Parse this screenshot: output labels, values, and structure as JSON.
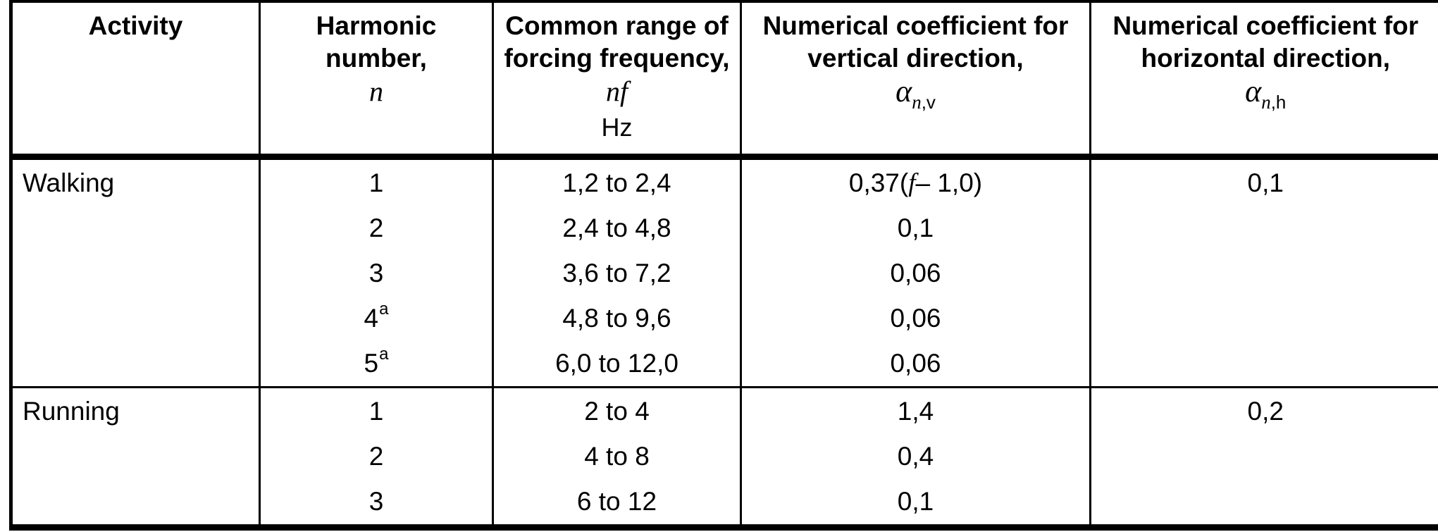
{
  "page": {
    "background_color": "#ffffff",
    "text_color": "#000000",
    "border_color": "#000000"
  },
  "table": {
    "columns": [
      {
        "id": "activity",
        "title_lines": [
          "Activity"
        ]
      },
      {
        "id": "harmonic",
        "title_lines": [
          "Harmonic",
          "number,"
        ],
        "symbol": {
          "italic": "n"
        }
      },
      {
        "id": "frequency",
        "title_lines": [
          "Common range of",
          "forcing frequency,"
        ],
        "symbol": {
          "italic": "nf"
        },
        "unit": "Hz"
      },
      {
        "id": "vertical",
        "title_lines": [
          "Numerical coefficient for",
          "vertical direction,"
        ],
        "symbol": {
          "base": "α",
          "sub_italic": "n",
          "sub_upright": ",v"
        }
      },
      {
        "id": "horizontal",
        "title_lines": [
          "Numerical coefficient for",
          "horizontal direction,"
        ],
        "symbol": {
          "base": "α",
          "sub_italic": "n",
          "sub_upright": ",h"
        }
      }
    ],
    "groups": [
      {
        "activity": "Walking",
        "rows": [
          {
            "harmonic": "1",
            "harmonic_sup": "",
            "frequency": "1,2 to 2,4",
            "vertical_parts": [
              {
                "text": "0,37(",
                "italic": false
              },
              {
                "text": "f",
                "italic": true
              },
              {
                "text": " – 1,0)",
                "italic": false
              }
            ],
            "horizontal": "0,1"
          },
          {
            "harmonic": "2",
            "harmonic_sup": "",
            "frequency": "2,4 to 4,8",
            "vertical_parts": [
              {
                "text": "0,1",
                "italic": false
              }
            ],
            "horizontal": ""
          },
          {
            "harmonic": "3",
            "harmonic_sup": "",
            "frequency": "3,6 to 7,2",
            "vertical_parts": [
              {
                "text": "0,06",
                "italic": false
              }
            ],
            "horizontal": ""
          },
          {
            "harmonic": "4",
            "harmonic_sup": "a",
            "frequency": "4,8 to 9,6",
            "vertical_parts": [
              {
                "text": "0,06",
                "italic": false
              }
            ],
            "horizontal": ""
          },
          {
            "harmonic": "5",
            "harmonic_sup": "a",
            "frequency": "6,0 to 12,0",
            "vertical_parts": [
              {
                "text": "0,06",
                "italic": false
              }
            ],
            "horizontal": ""
          }
        ]
      },
      {
        "activity": "Running",
        "rows": [
          {
            "harmonic": "1",
            "harmonic_sup": "",
            "frequency": "2 to 4",
            "vertical_parts": [
              {
                "text": "1,4",
                "italic": false
              }
            ],
            "horizontal": "0,2"
          },
          {
            "harmonic": "2",
            "harmonic_sup": "",
            "frequency": "4 to 8",
            "vertical_parts": [
              {
                "text": "0,4",
                "italic": false
              }
            ],
            "horizontal": ""
          },
          {
            "harmonic": "3",
            "harmonic_sup": "",
            "frequency": "6 to 12",
            "vertical_parts": [
              {
                "text": "0,1",
                "italic": false
              }
            ],
            "horizontal": ""
          }
        ]
      }
    ]
  }
}
